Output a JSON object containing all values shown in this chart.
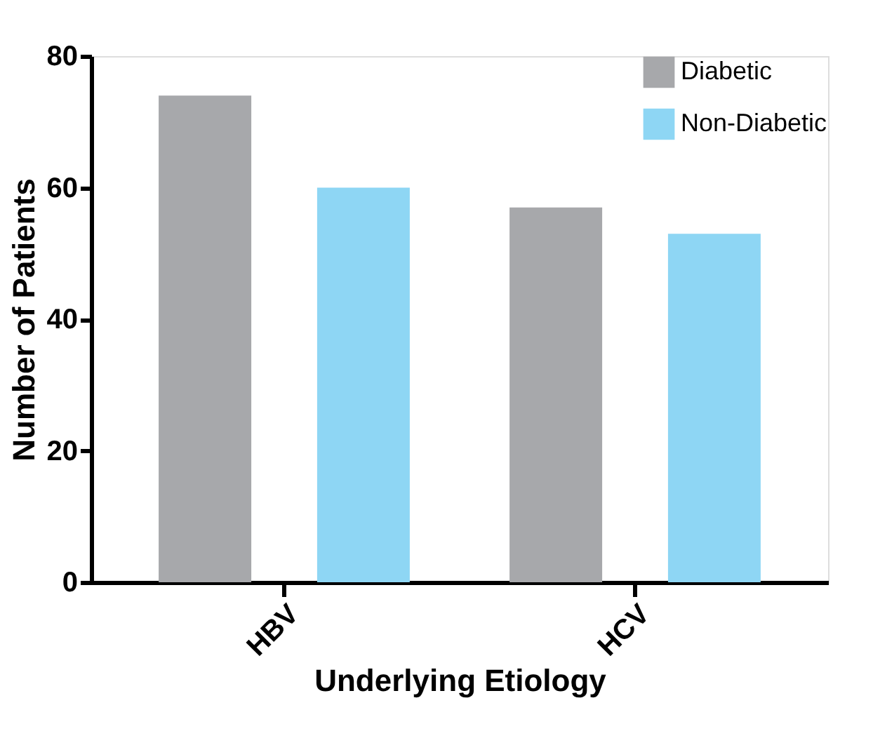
{
  "chart_data": {
    "type": "bar",
    "xlabel": "Underlying Etiology",
    "ylabel": "Number of Patients",
    "categories": [
      "HBV",
      "HCV"
    ],
    "series": [
      {
        "name": "Diabetic",
        "color": "#a7a8ab",
        "values": [
          74,
          57
        ]
      },
      {
        "name": "Non-Diabetic",
        "color": "#8ed6f4",
        "values": [
          60,
          53
        ]
      }
    ],
    "ylim": [
      0,
      80
    ],
    "yticks": [
      0,
      20,
      40,
      60,
      80
    ],
    "grid": false,
    "legend": "top right"
  }
}
